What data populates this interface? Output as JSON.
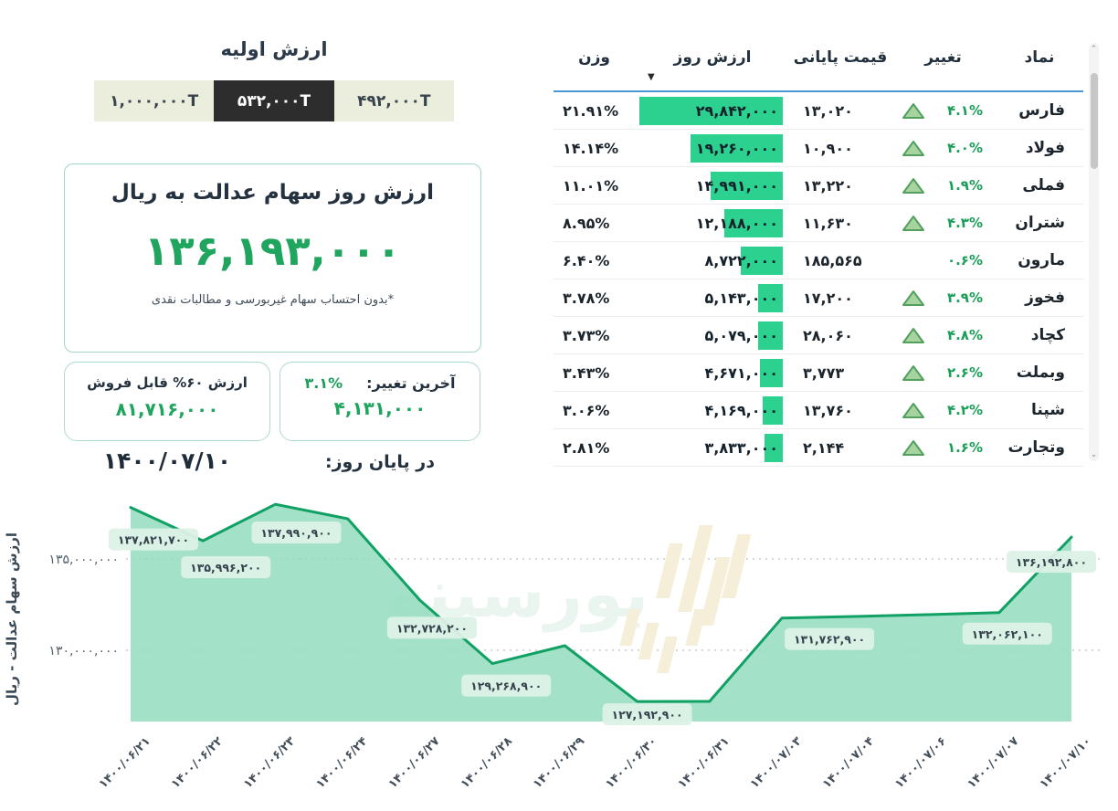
{
  "initial_value": {
    "title": "ارزش اولیه",
    "tabs": [
      {
        "label": "۱,۰۰۰,۰۰۰T",
        "active": false
      },
      {
        "label": "۵۳۲,۰۰۰T",
        "active": true
      },
      {
        "label": "۴۹۲,۰۰۰T",
        "active": false
      }
    ]
  },
  "main_card": {
    "heading": "ارزش روز سهام عدالت به ریال",
    "value": "۱۳۶,۱۹۳,۰۰۰",
    "footnote": "*بدون احتساب سهام غیربورسی و مطالبات نقدی"
  },
  "sellable_card": {
    "title": "ارزش ۶۰% قابل فروش",
    "value": "۸۱,۷۱۶,۰۰۰"
  },
  "change_card": {
    "label": "آخرین تغییر:",
    "percent": "۳.۱%",
    "value": "۴,۱۳۱,۰۰۰"
  },
  "footer": {
    "date": "۱۴۰۰/۰۷/۱۰",
    "label": "در پایان روز:"
  },
  "holdings_table": {
    "headers": {
      "symbol": "نماد",
      "change": "تغییر",
      "close_price": "قیمت پایانی",
      "day_value": "ارزش روز",
      "weight": "وزن"
    },
    "sort_icon": "▼",
    "rows": [
      {
        "symbol": "فارس",
        "change": "۴.۱%",
        "up": true,
        "close_price": "۱۳,۰۲۰",
        "day_value": "۲۹,۸۴۲,۰۰۰",
        "day_value_num": 29842000,
        "weight": "۲۱.۹۱%"
      },
      {
        "symbol": "فولاد",
        "change": "۴.۰%",
        "up": true,
        "close_price": "۱۰,۹۰۰",
        "day_value": "۱۹,۲۶۰,۰۰۰",
        "day_value_num": 19260000,
        "weight": "۱۴.۱۴%"
      },
      {
        "symbol": "فملی",
        "change": "۱.۹%",
        "up": true,
        "close_price": "۱۳,۲۲۰",
        "day_value": "۱۴,۹۹۱,۰۰۰",
        "day_value_num": 14991000,
        "weight": "۱۱.۰۱%"
      },
      {
        "symbol": "شتران",
        "change": "۴.۳%",
        "up": true,
        "close_price": "۱۱,۶۳۰",
        "day_value": "۱۲,۱۸۸,۰۰۰",
        "day_value_num": 12188000,
        "weight": "۸.۹۵%"
      },
      {
        "symbol": "مارون",
        "change": "۰.۶%",
        "up": false,
        "close_price": "۱۸۵,۵۶۵",
        "day_value": "۸,۷۲۲,۰۰۰",
        "day_value_num": 8722000,
        "weight": "۶.۴۰%"
      },
      {
        "symbol": "فخوز",
        "change": "۳.۹%",
        "up": true,
        "close_price": "۱۷,۲۰۰",
        "day_value": "۵,۱۴۳,۰۰۰",
        "day_value_num": 5143000,
        "weight": "۳.۷۸%"
      },
      {
        "symbol": "کچاد",
        "change": "۴.۸%",
        "up": true,
        "close_price": "۲۸,۰۶۰",
        "day_value": "۵,۰۷۹,۰۰۰",
        "day_value_num": 5079000,
        "weight": "۳.۷۳%"
      },
      {
        "symbol": "وبملت",
        "change": "۲.۶%",
        "up": true,
        "close_price": "۳,۷۷۳",
        "day_value": "۴,۶۷۱,۰۰۰",
        "day_value_num": 4671000,
        "weight": "۳.۴۳%"
      },
      {
        "symbol": "شپنا",
        "change": "۴.۲%",
        "up": true,
        "close_price": "۱۳,۷۶۰",
        "day_value": "۴,۱۶۹,۰۰۰",
        "day_value_num": 4169000,
        "weight": "۳.۰۶%"
      },
      {
        "symbol": "وتجارت",
        "change": "۱.۶%",
        "up": true,
        "close_price": "۲,۱۴۴",
        "day_value": "۳,۸۳۳,۰۰۰",
        "day_value_num": 3833000,
        "weight": "۲.۸۱%"
      }
    ]
  },
  "colors": {
    "accent_green": "#1fa55e",
    "bar_green": "#2dd18f",
    "line_green": "#12a164",
    "area_green": "#93dcc0",
    "header_blue": "#4a97d2",
    "dark_text": "#24313f",
    "tab_active_bg": "#2d2d2d",
    "tab_bg": "#ebeedd"
  },
  "chart_data": {
    "type": "area",
    "ylabel": "ارزش سهام عدالت - ریال",
    "x": [
      "۱۴۰۰/۰۶/۲۱",
      "۱۴۰۰/۰۶/۲۲",
      "۱۴۰۰/۰۶/۲۳",
      "۱۴۰۰/۰۶/۲۴",
      "۱۴۰۰/۰۶/۲۷",
      "۱۴۰۰/۰۶/۲۸",
      "۱۴۰۰/۰۶/۲۹",
      "۱۴۰۰/۰۶/۳۰",
      "۱۴۰۰/۰۶/۳۱",
      "۱۴۰۰/۰۷/۰۳",
      "۱۴۰۰/۰۷/۰۴",
      "۱۴۰۰/۰۷/۰۶",
      "۱۴۰۰/۰۷/۰۷",
      "۱۴۰۰/۰۷/۱۰"
    ],
    "values": [
      137821700,
      135996200,
      137990900,
      137200000,
      132728200,
      129268900,
      130250000,
      127192900,
      127200000,
      131762900,
      131850000,
      131950000,
      132062100,
      136192800
    ],
    "point_labels": [
      "۱۳۷,۸۲۱,۷۰۰",
      "۱۳۵,۹۹۶,۲۰۰",
      "۱۳۷,۹۹۰,۹۰۰",
      null,
      "۱۳۲,۷۲۸,۲۰۰",
      "۱۲۹,۲۶۸,۹۰۰",
      null,
      "۱۲۷,۱۹۲,۹۰۰",
      null,
      "۱۳۱,۷۶۲,۹۰۰",
      null,
      null,
      "۱۳۲,۰۶۲,۱۰۰",
      "۱۳۶,۱۹۲,۸۰۰"
    ],
    "yticks": [
      {
        "label": "۱۳۵,۰۰۰,۰۰۰",
        "value": 135000000
      },
      {
        "label": "۱۳۰,۰۰۰,۰۰۰",
        "value": 130000000
      }
    ],
    "ylim": [
      125600000,
      138600000
    ],
    "grid": "dotted-horizontal",
    "legend": "none",
    "label_offsets": {
      "0": [
        25,
        35
      ],
      "1": [
        25,
        29
      ],
      "2": [
        23,
        31
      ],
      "4": [
        13,
        30
      ],
      "5": [
        15,
        24
      ],
      "7": [
        11,
        14
      ],
      "9": [
        52,
        23
      ],
      "12": [
        9,
        23
      ],
      "13": [
        -22,
        27
      ]
    },
    "watermark": "بورسینه"
  }
}
